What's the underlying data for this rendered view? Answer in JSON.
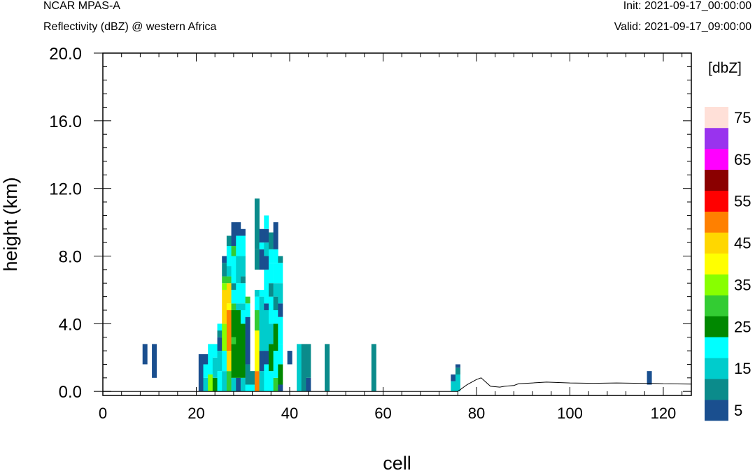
{
  "header": {
    "model": "NCAR MPAS-A",
    "subtitle": "Reflectivity (dBZ) @ western Africa",
    "init": "Init: 2021-09-17_00:00:00",
    "valid": "Valid: 2021-09-17_09:00:00"
  },
  "chart_data": {
    "type": "heatmap",
    "xlabel": "cell",
    "ylabel": "height (km)",
    "xlim": [
      0,
      126
    ],
    "ylim": [
      -0.24,
      20.0
    ],
    "x_ticks": [
      "0",
      "20",
      "40",
      "60",
      "80",
      "100",
      "120"
    ],
    "y_ticks": [
      "0.0",
      "4.0",
      "8.0",
      "12.0",
      "16.0",
      "20.0"
    ],
    "colorbar": {
      "label": "[dbZ]",
      "tick_labels": [
        "5",
        "15",
        "25",
        "35",
        "45",
        "55",
        "65",
        "75"
      ],
      "levels": [
        5,
        10,
        15,
        20,
        25,
        30,
        35,
        40,
        45,
        50,
        55,
        60,
        65,
        70,
        75
      ],
      "colors": [
        "#1a4f8f",
        "#0b8b8b",
        "#00cccc",
        "#00ffff",
        "#008800",
        "#33cc33",
        "#88ff00",
        "#ffff00",
        "#ffd700",
        "#ff8000",
        "#ff0000",
        "#8b0000",
        "#ff00ff",
        "#9933ee",
        "#ffe0d8"
      ]
    },
    "cell_height_km": 0.4,
    "columns": [
      {
        "x": 9,
        "cells": [
          [
            1.6,
            2.8,
            5
          ]
        ]
      },
      {
        "x": 11,
        "cells": [
          [
            0.8,
            2.8,
            5
          ]
        ]
      },
      {
        "x": 21,
        "cells": [
          [
            0.0,
            2.2,
            5
          ]
        ]
      },
      {
        "x": 22,
        "cells": [
          [
            0.0,
            0.8,
            15
          ],
          [
            0.8,
            1.6,
            20
          ],
          [
            1.6,
            2.2,
            5
          ]
        ]
      },
      {
        "x": 23,
        "cells": [
          [
            0.0,
            1.0,
            35
          ],
          [
            1.0,
            2.8,
            20
          ]
        ]
      },
      {
        "x": 24,
        "cells": [
          [
            0.0,
            0.8,
            25
          ],
          [
            0.8,
            2.0,
            15
          ],
          [
            2.0,
            2.8,
            20
          ]
        ]
      },
      {
        "x": 25,
        "cells": [
          [
            0.0,
            1.2,
            20
          ],
          [
            1.2,
            2.4,
            15
          ],
          [
            2.4,
            3.2,
            5
          ],
          [
            3.2,
            3.6,
            10
          ],
          [
            3.6,
            4.0,
            20
          ]
        ]
      },
      {
        "x": 26,
        "cells": [
          [
            0.0,
            1.2,
            15
          ],
          [
            1.2,
            2.4,
            20
          ],
          [
            2.4,
            4.0,
            35
          ],
          [
            4.0,
            6.0,
            45
          ],
          [
            6.0,
            6.4,
            35
          ],
          [
            6.4,
            6.8,
            30
          ],
          [
            6.8,
            7.6,
            10
          ],
          [
            7.6,
            8.0,
            5
          ]
        ]
      },
      {
        "x": 27,
        "cells": [
          [
            0.0,
            1.2,
            30
          ],
          [
            1.2,
            2.4,
            45
          ],
          [
            2.4,
            4.8,
            50
          ],
          [
            4.8,
            5.2,
            40
          ],
          [
            5.2,
            6.4,
            45
          ],
          [
            6.4,
            6.8,
            30
          ],
          [
            6.8,
            7.4,
            15
          ],
          [
            7.4,
            8.6,
            20
          ],
          [
            8.6,
            9.2,
            10
          ]
        ]
      },
      {
        "x": 28,
        "cells": [
          [
            0.0,
            0.8,
            15
          ],
          [
            0.8,
            2.8,
            25
          ],
          [
            2.8,
            3.2,
            30
          ],
          [
            3.2,
            4.8,
            25
          ],
          [
            4.8,
            5.2,
            30
          ],
          [
            5.2,
            6.0,
            20
          ],
          [
            6.0,
            6.4,
            10
          ],
          [
            6.4,
            8.0,
            20
          ],
          [
            8.0,
            8.6,
            30
          ],
          [
            8.6,
            10.0,
            5
          ]
        ]
      },
      {
        "x": 29,
        "cells": [
          [
            0.0,
            0.8,
            5
          ],
          [
            0.8,
            4.8,
            25
          ],
          [
            4.8,
            5.2,
            15
          ],
          [
            5.2,
            6.4,
            20
          ],
          [
            6.4,
            8.0,
            15
          ],
          [
            8.0,
            9.2,
            20
          ],
          [
            9.2,
            10.0,
            5
          ]
        ]
      },
      {
        "x": 30,
        "cells": [
          [
            0.0,
            0.8,
            15
          ],
          [
            0.8,
            4.0,
            25
          ],
          [
            4.0,
            4.8,
            20
          ],
          [
            4.8,
            5.2,
            15
          ],
          [
            5.2,
            6.4,
            20
          ],
          [
            6.4,
            6.8,
            10
          ],
          [
            6.8,
            8.0,
            15
          ],
          [
            8.0,
            9.2,
            20
          ],
          [
            9.2,
            9.6,
            5
          ]
        ]
      },
      {
        "x": 31,
        "cells": [
          [
            0.0,
            0.4,
            20
          ],
          [
            0.4,
            1.6,
            10
          ],
          [
            1.6,
            4.4,
            5
          ],
          [
            4.4,
            5.2,
            20
          ],
          [
            5.2,
            5.6,
            30
          ]
        ]
      },
      {
        "x": 32,
        "cells": [
          [
            0.0,
            0.4,
            20
          ],
          [
            0.4,
            1.2,
            10
          ]
        ]
      },
      {
        "x": 33,
        "cells": [
          [
            0.0,
            1.2,
            50
          ],
          [
            1.2,
            3.6,
            40
          ],
          [
            3.6,
            4.8,
            30
          ],
          [
            4.8,
            5.6,
            20
          ],
          [
            5.6,
            6.0,
            15
          ],
          [
            7.2,
            8.4,
            10
          ],
          [
            8.4,
            11.4,
            10
          ]
        ]
      },
      {
        "x": 34,
        "cells": [
          [
            0.0,
            1.2,
            15
          ],
          [
            1.2,
            2.4,
            5
          ],
          [
            2.4,
            5.6,
            15
          ],
          [
            5.6,
            6.0,
            20
          ],
          [
            7.2,
            8.4,
            5
          ],
          [
            8.4,
            8.8,
            20
          ],
          [
            8.8,
            9.6,
            5
          ]
        ]
      },
      {
        "x": 35,
        "cells": [
          [
            0.0,
            1.6,
            20
          ],
          [
            1.6,
            2.4,
            5
          ],
          [
            2.4,
            4.8,
            15
          ],
          [
            4.8,
            5.2,
            5
          ],
          [
            5.2,
            7.2,
            20
          ],
          [
            7.2,
            8.0,
            5
          ],
          [
            8.0,
            8.8,
            15
          ],
          [
            8.8,
            9.6,
            5
          ],
          [
            9.6,
            10.4,
            20
          ]
        ]
      },
      {
        "x": 36,
        "cells": [
          [
            0.0,
            1.2,
            20
          ],
          [
            1.2,
            2.8,
            25
          ],
          [
            2.8,
            4.0,
            15
          ],
          [
            4.0,
            5.6,
            20
          ],
          [
            5.6,
            6.4,
            10
          ],
          [
            6.4,
            7.6,
            20
          ],
          [
            7.6,
            8.4,
            20
          ],
          [
            8.4,
            9.4,
            10
          ]
        ]
      },
      {
        "x": 37,
        "cells": [
          [
            0.0,
            0.8,
            30
          ],
          [
            0.8,
            2.4,
            20
          ],
          [
            2.4,
            4.0,
            25
          ],
          [
            4.0,
            4.8,
            20
          ],
          [
            4.8,
            5.6,
            10
          ],
          [
            5.6,
            6.4,
            15
          ],
          [
            6.4,
            7.6,
            20
          ],
          [
            7.6,
            8.4,
            20
          ],
          [
            8.4,
            10.0,
            5
          ]
        ]
      },
      {
        "x": 38,
        "cells": [
          [
            0.0,
            0.4,
            5
          ],
          [
            0.4,
            1.6,
            25
          ],
          [
            1.6,
            2.8,
            20
          ],
          [
            2.8,
            4.4,
            20
          ],
          [
            4.4,
            5.2,
            5
          ],
          [
            5.2,
            6.4,
            15
          ],
          [
            6.4,
            7.6,
            20
          ],
          [
            7.6,
            8.0,
            10
          ]
        ]
      },
      {
        "x": 40,
        "cells": [
          [
            1.6,
            2.4,
            5
          ]
        ]
      },
      {
        "x": 42,
        "cells": [
          [
            0.0,
            2.8,
            15
          ]
        ]
      },
      {
        "x": 43,
        "cells": [
          [
            0.0,
            2.8,
            10
          ]
        ]
      },
      {
        "x": 44,
        "cells": [
          [
            0.0,
            0.8,
            5
          ],
          [
            0.8,
            2.8,
            10
          ]
        ]
      },
      {
        "x": 48,
        "cells": [
          [
            0.0,
            2.8,
            10
          ]
        ]
      },
      {
        "x": 58,
        "cells": [
          [
            0.0,
            2.8,
            10
          ]
        ]
      },
      {
        "x": 75,
        "cells": [
          [
            0.0,
            0.6,
            15
          ],
          [
            0.6,
            1.0,
            5
          ]
        ]
      },
      {
        "x": 76,
        "cells": [
          [
            0.0,
            1.0,
            15
          ],
          [
            1.0,
            1.4,
            10
          ],
          [
            1.4,
            1.6,
            5
          ]
        ]
      },
      {
        "x": 117,
        "cells": [
          [
            0.4,
            1.2,
            5
          ]
        ]
      }
    ],
    "terrain": {
      "x": [
        0,
        20,
        74,
        76,
        78,
        80,
        81,
        83,
        85,
        86,
        88,
        89,
        92,
        95,
        98,
        100,
        105,
        110,
        115,
        118,
        120,
        126
      ],
      "y": [
        0.0,
        0.0,
        0.0,
        0.0,
        0.4,
        0.7,
        0.8,
        0.3,
        0.25,
        0.3,
        0.35,
        0.45,
        0.5,
        0.55,
        0.52,
        0.5,
        0.48,
        0.5,
        0.48,
        0.47,
        0.45,
        0.43
      ]
    }
  }
}
